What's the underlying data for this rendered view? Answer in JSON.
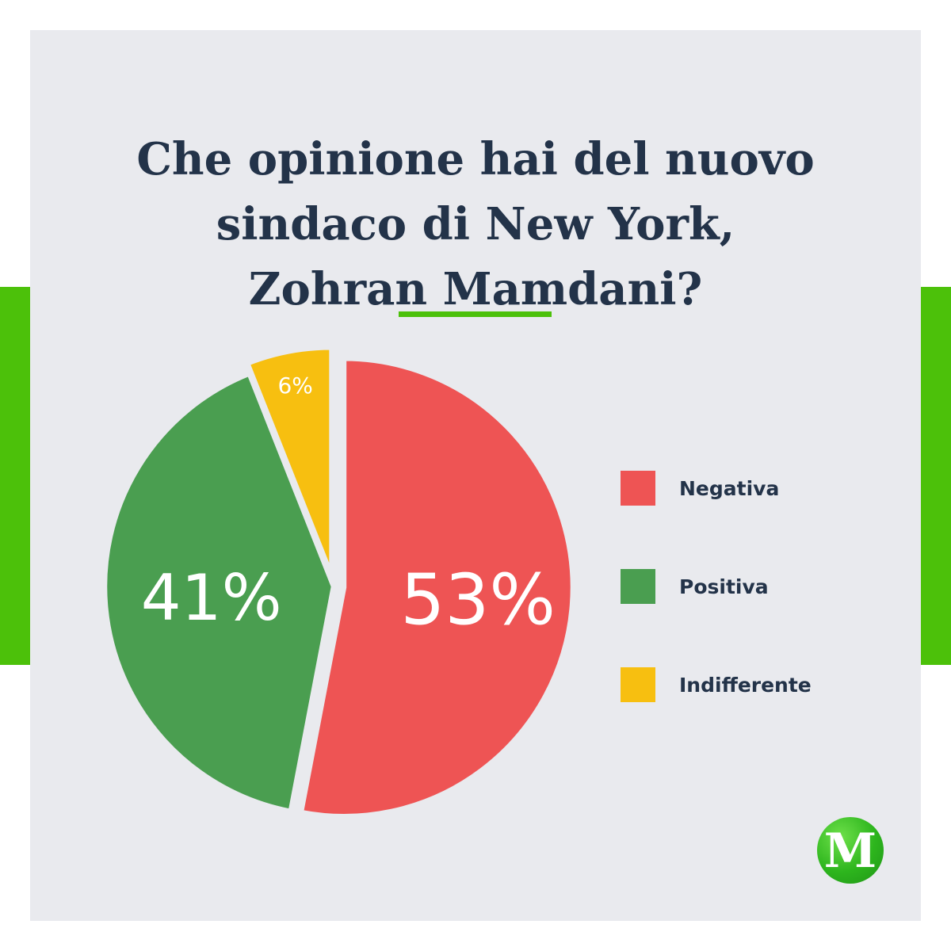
{
  "title_lines": [
    "Che opinione hai del nuovo",
    "sindaco di New York,",
    "Zohran Mamdani?"
  ],
  "logo": {
    "letter": "M"
  },
  "colors": {
    "negativa": "#ee5454",
    "positiva": "#4a9e50",
    "indifferente": "#f7bf10",
    "accent": "#4cc10a",
    "title": "#233349",
    "card": "#e9eaee"
  },
  "chart_data": {
    "type": "pie",
    "slices": [
      {
        "name": "Negativa",
        "value": 53,
        "label": "53%",
        "color": "#ee5454"
      },
      {
        "name": "Positiva",
        "value": 41,
        "label": "41%",
        "color": "#4a9e50"
      },
      {
        "name": "Indifferente",
        "value": 6,
        "label": "6%",
        "color": "#f7bf10"
      }
    ],
    "legend": [
      "Negativa",
      "Positiva",
      "Indifferente"
    ],
    "legend_position": "right",
    "start": "top",
    "direction": "clockwise"
  }
}
